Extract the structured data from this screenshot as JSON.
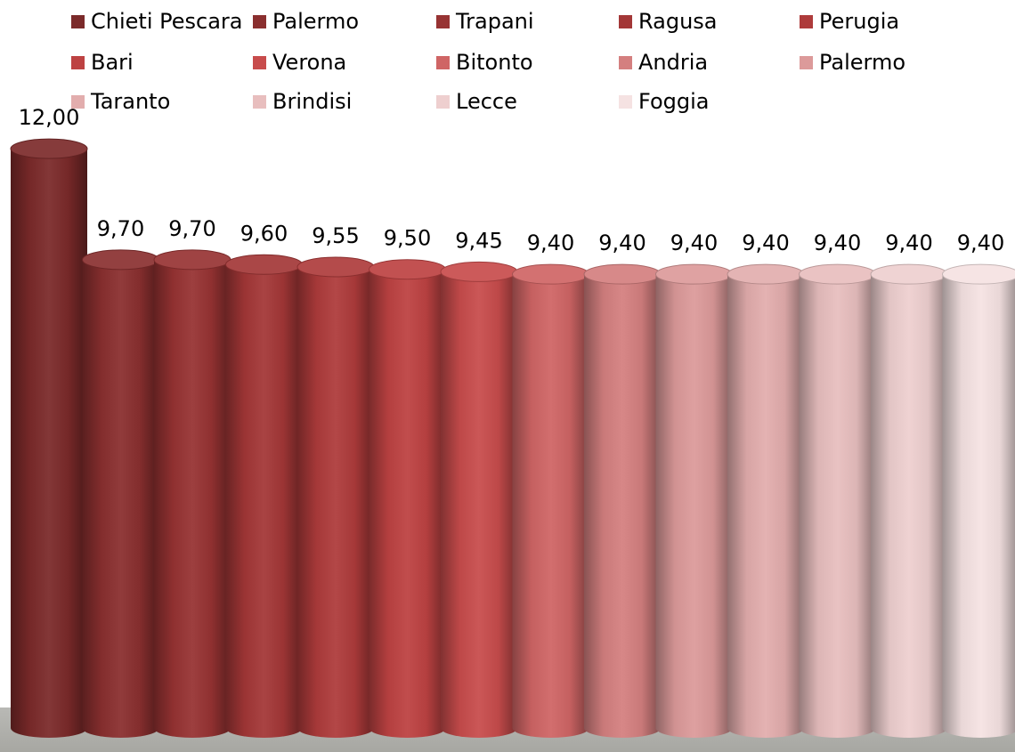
{
  "chart_data": {
    "type": "bar",
    "style": "3d-cylinder",
    "categories": [
      "Chieti Pescara",
      "Palermo",
      "Trapani",
      "Ragusa",
      "Perugia",
      "Bari",
      "Verona",
      "Bitonto",
      "Andria",
      "Palermo",
      "Taranto",
      "Brindisi",
      "Lecce",
      "Foggia"
    ],
    "values": [
      12.0,
      9.7,
      9.7,
      9.6,
      9.55,
      9.5,
      9.45,
      9.4,
      9.4,
      9.4,
      9.4,
      9.4,
      9.4,
      9.4
    ],
    "data_labels": [
      "12,00",
      "9,70",
      "9,70",
      "9,60",
      "9,55",
      "9,50",
      "9,45",
      "9,40",
      "9,40",
      "9,40",
      "9,40",
      "9,40",
      "9,40",
      "9,40"
    ],
    "colors": [
      "#7b2a2a",
      "#8a2f2f",
      "#973333",
      "#a33737",
      "#ae3b3b",
      "#bd4242",
      "#c84c4c",
      "#cf6565",
      "#d47f7f",
      "#dc9a9a",
      "#e2adad",
      "#e8bebe",
      "#eecfcf",
      "#f5e2e2"
    ],
    "ylim": [
      0,
      12.5
    ],
    "grid": false,
    "legend_placement": "top"
  }
}
